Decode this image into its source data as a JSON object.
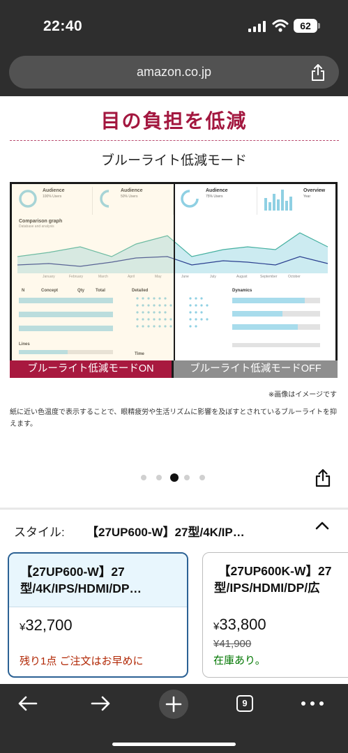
{
  "status_bar": {
    "time": "22:40",
    "battery": "62"
  },
  "browser": {
    "url": "amazon.co.jp",
    "tab_count": "9"
  },
  "banner": {
    "title": "目の負担を低減",
    "subtitle": "ブルーライト低減モード",
    "label_on": "ブルーライト低減モードON",
    "label_off": "ブルーライト低減モードOFF",
    "note": "※画像はイメージです",
    "description": "紙に近い色温度で表示することで、眼精疲労や生活リズムに影響を及ぼすとされているブルーライトを抑えます。"
  },
  "screen_ui": {
    "cards": [
      {
        "title": "Audience",
        "sub": "100% Users"
      },
      {
        "title": "Audience",
        "sub": "50% Users"
      },
      {
        "title": "Audience",
        "sub": "75% Users"
      },
      {
        "title": "Overview",
        "sub": "Year"
      }
    ],
    "graph_title": "Comparison graph",
    "graph_sub": "Database and analysis",
    "months": [
      "January",
      "February",
      "March",
      "April",
      "May",
      "June",
      "July",
      "August",
      "September",
      "October"
    ],
    "table_headers": [
      "N",
      "Concept",
      "Qty",
      "Total"
    ],
    "detailed": "Detailed",
    "dynamics": "Dynamics",
    "lines": "Lines",
    "time": "Time"
  },
  "carousel": {
    "count": 5,
    "active_index": 2
  },
  "style_selector": {
    "label": "スタイル:",
    "value": "【27UP600-W】27型/4K/IP…"
  },
  "products": [
    {
      "title_line1": "【27UP600-W】27",
      "title_line2": "型/4K/IPS/HDMI/DP…",
      "price_symbol": "¥",
      "price": "32,700",
      "original_price": "",
      "stock": "残り1点 ご注文はお早めに"
    },
    {
      "title_line1": "【27UP600K-W】27",
      "title_line2": "型/IPS/HDMI/DP/広",
      "price_symbol": "¥",
      "price": "33,800",
      "original_price": "¥41,900",
      "stock": "在庫あり。"
    }
  ],
  "colors": {
    "brand_red": "#a3173f",
    "selected_border": "#2b6194",
    "chrome_bg": "#2e2e2e",
    "stock_low": "#b12704",
    "stock_ok": "#007600"
  }
}
